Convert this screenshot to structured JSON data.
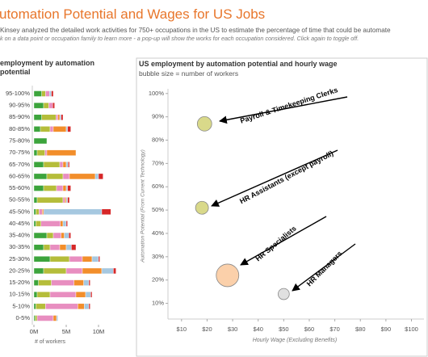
{
  "header": {
    "title": "utomation Potential and Wages for US Jobs",
    "subtitle": "Kinsey analyzed the detailed work activities for 750+ occupations in the US to estimate the percentage of time that could be automate",
    "instruction": "k on a data point or occupation family to learn more - a pop-up will show the works for each occupation considered. Click again to toggle off."
  },
  "chart_data": [
    {
      "type": "bar",
      "orientation": "horizontal",
      "stacked": true,
      "title": "employment by automation potential",
      "categories": [
        "95-100%",
        "90-95%",
        "85-90%",
        "80-85%",
        "75-80%",
        "70-75%",
        "65-70%",
        "60-65%",
        "55-60%",
        "50-55%",
        "45-50%",
        "40-45%",
        "35-40%",
        "30-35%",
        "25-30%",
        "20-25%",
        "15-20%",
        "10-15%",
        "5-10%",
        "0-5%"
      ],
      "series": [
        {
          "color": "#3ca43c",
          "values": [
            1.2,
            1.5,
            1.2,
            1.0,
            2.0,
            0.5,
            1.5,
            2.0,
            1.5,
            0.5,
            0.3,
            0.3,
            2.0,
            1.5,
            2.5,
            1.5,
            0.7,
            0.5,
            0.3,
            0.2
          ]
        },
        {
          "color": "#b5bd3a",
          "values": [
            0.6,
            0.8,
            2.2,
            1.5,
            0,
            1.2,
            2.5,
            2.5,
            2.0,
            4.0,
            0.5,
            0.8,
            1.0,
            1.0,
            3.0,
            3.5,
            2.0,
            2.0,
            1.5,
            0.3
          ]
        },
        {
          "color": "#e88ec0",
          "values": [
            0.6,
            0.6,
            0.3,
            0.5,
            0,
            0.3,
            0.5,
            1.0,
            1.0,
            0.3,
            0.5,
            3.0,
            1.2,
            1.5,
            2.0,
            2.5,
            3.5,
            4.0,
            5.0,
            2.5
          ]
        },
        {
          "color": "#f28e2b",
          "values": [
            0,
            0,
            0.3,
            2.0,
            0,
            4.5,
            0.5,
            4.0,
            0.5,
            0.2,
            0.2,
            0.4,
            0.5,
            1.0,
            1.5,
            3.0,
            1.5,
            1.5,
            1.0,
            0.5
          ]
        },
        {
          "color": "#a6c8e0",
          "values": [
            0.3,
            0,
            0.2,
            0.2,
            0,
            0,
            0.3,
            0.5,
            0.2,
            0.2,
            9.0,
            0.5,
            0.7,
            0.8,
            1.0,
            1.8,
            0.8,
            0.8,
            0.7,
            0.2
          ]
        },
        {
          "color": "#d62728",
          "values": [
            0.3,
            0.3,
            0.3,
            0.5,
            0,
            0,
            0.2,
            0.7,
            0.5,
            0.3,
            1.4,
            0.2,
            0.3,
            0.7,
            0.2,
            0.4,
            0.2,
            0.2,
            0.2,
            0
          ]
        }
      ],
      "xlim": [
        0,
        13.75
      ],
      "xticks": [
        {
          "value": 0,
          "label": "0M"
        },
        {
          "value": 5,
          "label": "5M"
        },
        {
          "value": 10,
          "label": "10M"
        }
      ],
      "xlabel": "# of workers"
    },
    {
      "type": "scatter",
      "title": "US employment by automation potential and hourly wage",
      "subtitle": "bubble size = number of workers",
      "labels": [
        "Payroll & Timekeeping Clerks",
        "HR Assistants (except payroll)",
        "HR Specialists",
        "HR Managers"
      ],
      "x": [
        19,
        18,
        28,
        50
      ],
      "values": [
        87,
        51,
        22,
        14
      ],
      "sizes": [
        0.2,
        0.16,
        0.49,
        0.12
      ],
      "colors": [
        "#d9d98a",
        "#d9d98a",
        "#fbd0aa",
        "#e0e0e0"
      ],
      "xlim": [
        5,
        103
      ],
      "ylim": [
        5,
        102
      ],
      "xticks": [
        {
          "value": 10,
          "label": "$10"
        },
        {
          "value": 20,
          "label": "$20"
        },
        {
          "value": 30,
          "label": "$30"
        },
        {
          "value": 40,
          "label": "$40"
        },
        {
          "value": 50,
          "label": "$50"
        },
        {
          "value": 60,
          "label": "$60"
        },
        {
          "value": 70,
          "label": "$70"
        },
        {
          "value": 80,
          "label": "$80"
        },
        {
          "value": 90,
          "label": "$90"
        },
        {
          "value": 100,
          "label": "$100"
        }
      ],
      "yticks": [
        {
          "value": 10,
          "label": "10%"
        },
        {
          "value": 20,
          "label": "20%"
        },
        {
          "value": 30,
          "label": "30%"
        },
        {
          "value": 40,
          "label": "40%"
        },
        {
          "value": 50,
          "label": "50%"
        },
        {
          "value": 60,
          "label": "60%"
        },
        {
          "value": 70,
          "label": "70%"
        },
        {
          "value": 80,
          "label": "80%"
        },
        {
          "value": 90,
          "label": "90%"
        },
        {
          "value": 100,
          "label": "100%"
        }
      ],
      "xlabel": "Hourly Wage (Excluding Benefits)",
      "ylabel": "Automation Potential (From Current Technology)"
    }
  ]
}
